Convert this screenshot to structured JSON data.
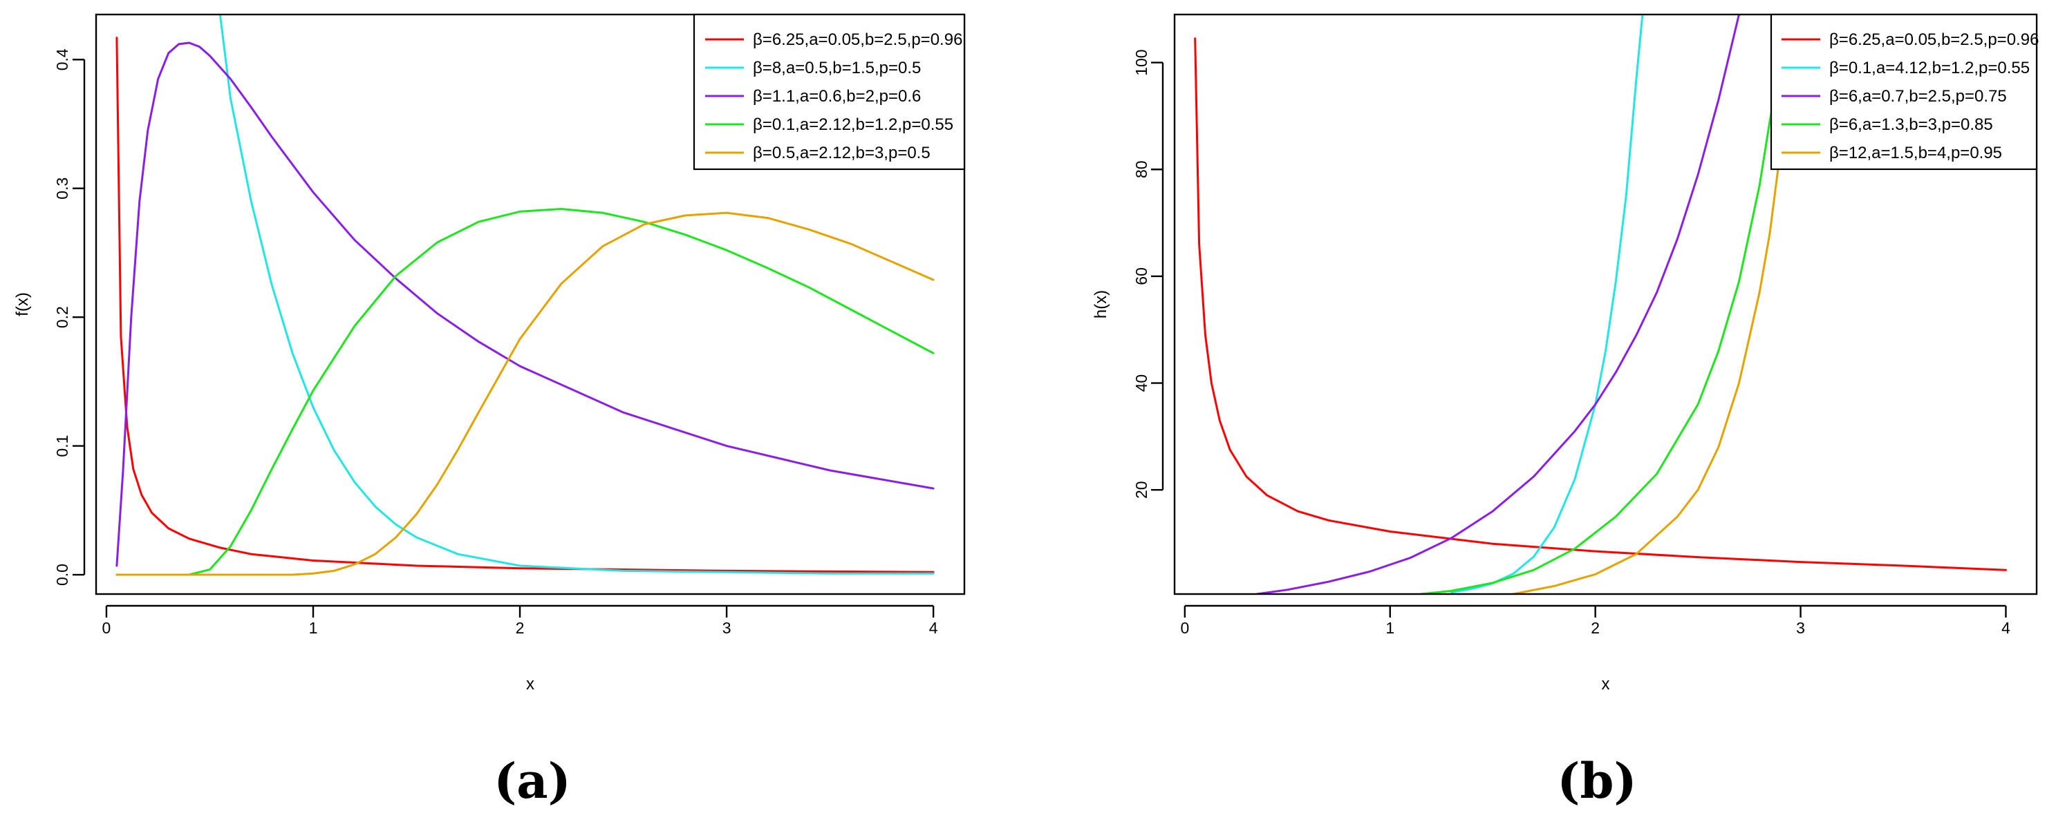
{
  "colors": {
    "red": "#ff0000",
    "cyan": "#22e6e6",
    "purple": "#8a1ee6",
    "green": "#1ee61e",
    "orange": "#e6a300"
  },
  "chart_data": [
    {
      "type": "line",
      "panel_label": "(a)",
      "xlabel": "x",
      "ylabel": "f(x)",
      "xlim": [
        -0.05,
        4.15
      ],
      "ylim": [
        -0.015,
        0.435
      ],
      "xticks": [
        0,
        1,
        2,
        3,
        4
      ],
      "yticks": [
        0.0,
        0.1,
        0.2,
        0.3,
        0.4
      ],
      "ytick_labels": [
        "0.0",
        "0.1",
        "0.2",
        "0.3",
        "0.4"
      ],
      "legend_position": "top-right",
      "grid": false,
      "series": [
        {
          "name": "β=6.25,a=0.05,b=2.5,p=0.96",
          "color": "#ff0000",
          "x": [
            0.05,
            0.07,
            0.1,
            0.13,
            0.17,
            0.22,
            0.3,
            0.4,
            0.55,
            0.7,
            1.0,
            1.5,
            2.0,
            3.0,
            4.0
          ],
          "y": [
            0.417,
            0.185,
            0.115,
            0.082,
            0.062,
            0.048,
            0.036,
            0.028,
            0.021,
            0.016,
            0.011,
            0.007,
            0.005,
            0.003,
            0.002
          ]
        },
        {
          "name": "β=8,a=0.5,b=1.5,p=0.5",
          "color": "#22e6e6",
          "x": [
            0.55,
            0.6,
            0.7,
            0.8,
            0.9,
            1.0,
            1.1,
            1.2,
            1.3,
            1.4,
            1.5,
            1.7,
            2.0,
            2.5,
            3.0,
            3.5,
            4.0
          ],
          "y": [
            0.435,
            0.37,
            0.29,
            0.225,
            0.172,
            0.13,
            0.097,
            0.072,
            0.053,
            0.039,
            0.029,
            0.016,
            0.007,
            0.003,
            0.002,
            0.001,
            0.001
          ]
        },
        {
          "name": "β=1.1,a=0.6,b=2,p=0.6",
          "color": "#8a1ee6",
          "x": [
            0.05,
            0.08,
            0.12,
            0.16,
            0.2,
            0.25,
            0.3,
            0.35,
            0.4,
            0.45,
            0.5,
            0.6,
            0.7,
            0.8,
            1.0,
            1.2,
            1.4,
            1.6,
            1.8,
            2.0,
            2.5,
            3.0,
            3.5,
            4.0
          ],
          "y": [
            0.007,
            0.08,
            0.2,
            0.29,
            0.345,
            0.385,
            0.405,
            0.412,
            0.413,
            0.41,
            0.403,
            0.385,
            0.363,
            0.34,
            0.297,
            0.26,
            0.23,
            0.203,
            0.181,
            0.162,
            0.126,
            0.1,
            0.081,
            0.067
          ]
        },
        {
          "name": "β=0.1,a=2.12,b=1.2,p=0.55",
          "color": "#1ee61e",
          "x": [
            0.4,
            0.5,
            0.6,
            0.7,
            0.8,
            0.9,
            1.0,
            1.2,
            1.4,
            1.6,
            1.8,
            2.0,
            2.2,
            2.4,
            2.6,
            2.8,
            3.0,
            3.2,
            3.4,
            3.6,
            3.8,
            4.0
          ],
          "y": [
            0.0,
            0.004,
            0.022,
            0.05,
            0.082,
            0.113,
            0.143,
            0.193,
            0.232,
            0.258,
            0.274,
            0.282,
            0.284,
            0.281,
            0.274,
            0.264,
            0.252,
            0.238,
            0.223,
            0.206,
            0.189,
            0.172
          ]
        },
        {
          "name": "β=0.5,a=2.12,b=3,p=0.5",
          "color": "#e6a300",
          "x": [
            0.05,
            0.5,
            0.9,
            1.0,
            1.1,
            1.2,
            1.3,
            1.4,
            1.5,
            1.6,
            1.7,
            1.8,
            2.0,
            2.2,
            2.4,
            2.6,
            2.8,
            3.0,
            3.2,
            3.4,
            3.6,
            3.8,
            4.0
          ],
          "y": [
            0.0,
            0.0,
            0.0,
            0.001,
            0.003,
            0.008,
            0.016,
            0.029,
            0.047,
            0.07,
            0.097,
            0.126,
            0.183,
            0.226,
            0.255,
            0.272,
            0.279,
            0.281,
            0.277,
            0.268,
            0.257,
            0.243,
            0.229
          ]
        }
      ]
    },
    {
      "type": "line",
      "panel_label": "(b)",
      "xlabel": "x",
      "ylabel": "h(x)",
      "xlim": [
        -0.05,
        4.15
      ],
      "ylim": [
        0.5,
        109
      ],
      "xticks": [
        0,
        1,
        2,
        3,
        4
      ],
      "yticks": [
        20,
        40,
        60,
        80,
        100
      ],
      "ytick_labels": [
        "20",
        "40",
        "60",
        "80",
        "100"
      ],
      "legend_position": "top-right",
      "grid": false,
      "series": [
        {
          "name": "β=6.25,a=0.05,b=2.5,p=0.96",
          "color": "#ff0000",
          "x": [
            0.05,
            0.07,
            0.1,
            0.13,
            0.17,
            0.22,
            0.3,
            0.4,
            0.55,
            0.7,
            1.0,
            1.5,
            2.0,
            2.5,
            3.0,
            3.5,
            4.0
          ],
          "y": [
            104.5,
            66,
            49,
            40,
            33,
            27.5,
            22.5,
            19,
            16,
            14.3,
            12.2,
            9.9,
            8.5,
            7.4,
            6.5,
            5.8,
            5.0
          ]
        },
        {
          "name": "β=0.1,a=4.12,b=1.2,p=0.55",
          "color": "#22e6e6",
          "x": [
            1.3,
            1.4,
            1.5,
            1.6,
            1.7,
            1.8,
            1.9,
            2.0,
            2.05,
            2.1,
            2.15,
            2.2,
            2.23
          ],
          "y": [
            0.8,
            1.5,
            2.5,
            4.3,
            7.5,
            13,
            22,
            36,
            46,
            59,
            75,
            97,
            109
          ]
        },
        {
          "name": "β=6,a=0.7,b=2.5,p=0.75",
          "color": "#8a1ee6",
          "x": [
            0.35,
            0.5,
            0.7,
            0.9,
            1.1,
            1.3,
            1.5,
            1.7,
            1.9,
            2.0,
            2.1,
            2.2,
            2.3,
            2.4,
            2.5,
            2.6,
            2.7
          ],
          "y": [
            0.5,
            1.3,
            2.8,
            4.7,
            7.3,
            11,
            16,
            22.5,
            31,
            36,
            42,
            49,
            57,
            67,
            79,
            93,
            109
          ]
        },
        {
          "name": "β=6,a=1.3,b=3,p=0.85",
          "color": "#1ee61e",
          "x": [
            1.15,
            1.3,
            1.5,
            1.7,
            1.9,
            2.1,
            2.3,
            2.5,
            2.6,
            2.7,
            2.8,
            2.85,
            2.9
          ],
          "y": [
            0.5,
            1.1,
            2.6,
            5.0,
            9.0,
            15,
            23,
            36,
            46,
            59,
            77,
            89,
            100
          ]
        },
        {
          "name": "β=12,a=1.5,b=4,p=0.95",
          "color": "#e6a300",
          "x": [
            1.6,
            1.8,
            2.0,
            2.2,
            2.4,
            2.5,
            2.6,
            2.7,
            2.8,
            2.85,
            2.9,
            2.95
          ],
          "y": [
            0.5,
            2.0,
            4.2,
            8.0,
            15,
            20,
            28,
            40,
            57,
            68,
            83,
            100
          ]
        }
      ]
    }
  ]
}
